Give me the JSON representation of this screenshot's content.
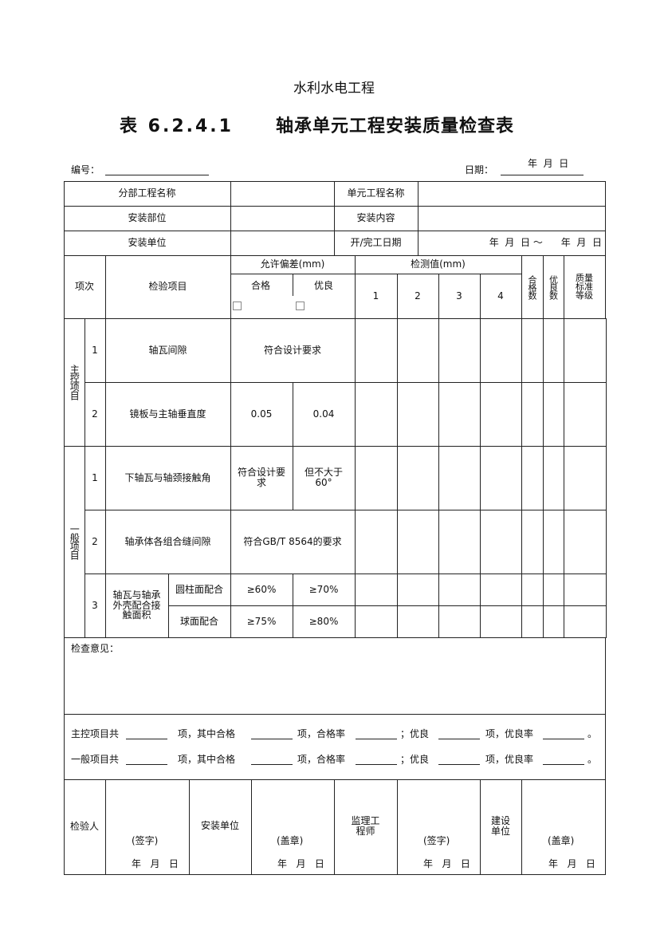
{
  "header": {
    "org": "水利水电工程",
    "title_no": "表 6.2.4.1",
    "title": "轴承单元工程安装质量检查表",
    "number_label": "编号：",
    "date_label": "日期：",
    "date_value": "年  月  日"
  },
  "info": {
    "sub_project_label": "分部工程名称",
    "unit_project_label": "单元工程名称",
    "install_part_label": "安装部位",
    "install_content_label": "安装内容",
    "install_unit_label": "安装单位",
    "dates_label": "开/完工日期",
    "dates_value": "年  月  日 ～      年  月  日"
  },
  "columns": {
    "index": "项次",
    "item": "检验项目",
    "tolerance": "允许偏差(mm)",
    "pass": "合格",
    "excellent": "优良",
    "measured": "检测值(mm)",
    "m1": "1",
    "m2": "2",
    "m3": "3",
    "m4": "4",
    "pass_count": "合格数",
    "excellent_count": "优良数",
    "grade": "质量标准等级"
  },
  "main_items": {
    "group": "主控项目",
    "rows": [
      {
        "index": "1",
        "item": "轴瓦间隙",
        "standard": "符合设计要求"
      },
      {
        "index": "2",
        "item": "镜板与主轴垂直度",
        "pass": "0.05",
        "excellent": "0.04"
      }
    ]
  },
  "general_items": {
    "group": "一般项目",
    "rows": [
      {
        "index": "1",
        "item": "下轴瓦与轴颈接触角",
        "pass": "符合设计要求",
        "excellent": "但不大于60°"
      },
      {
        "index": "2",
        "item": "轴承体各组合缝间隙",
        "standard": "符合GB/T 8564的要求"
      },
      {
        "index": "3",
        "item": "轴瓦与轴承外壳配合接触面积",
        "sub": [
          {
            "name": "圆柱面配合",
            "pass": "≥60%",
            "excellent": "≥70%"
          },
          {
            "name": "球面配合",
            "pass": "≥75%",
            "excellent": "≥80%"
          }
        ]
      }
    ]
  },
  "remarks_label": "检查意见：",
  "summary": {
    "main_prefix": "主控项目共",
    "general_prefix": "一般项目共",
    "t1": "项，其中合格",
    "t2": "项，合格率",
    "t3": "；优良",
    "t4": "项，优良率",
    "end": "。"
  },
  "signatures": {
    "inspector": "检验人",
    "sign": "(签字)",
    "install_unit": "安装单位",
    "seal": "(盖章)",
    "supervisor": "监理工程师",
    "owner": "建设单位",
    "date": "年   月   日"
  }
}
